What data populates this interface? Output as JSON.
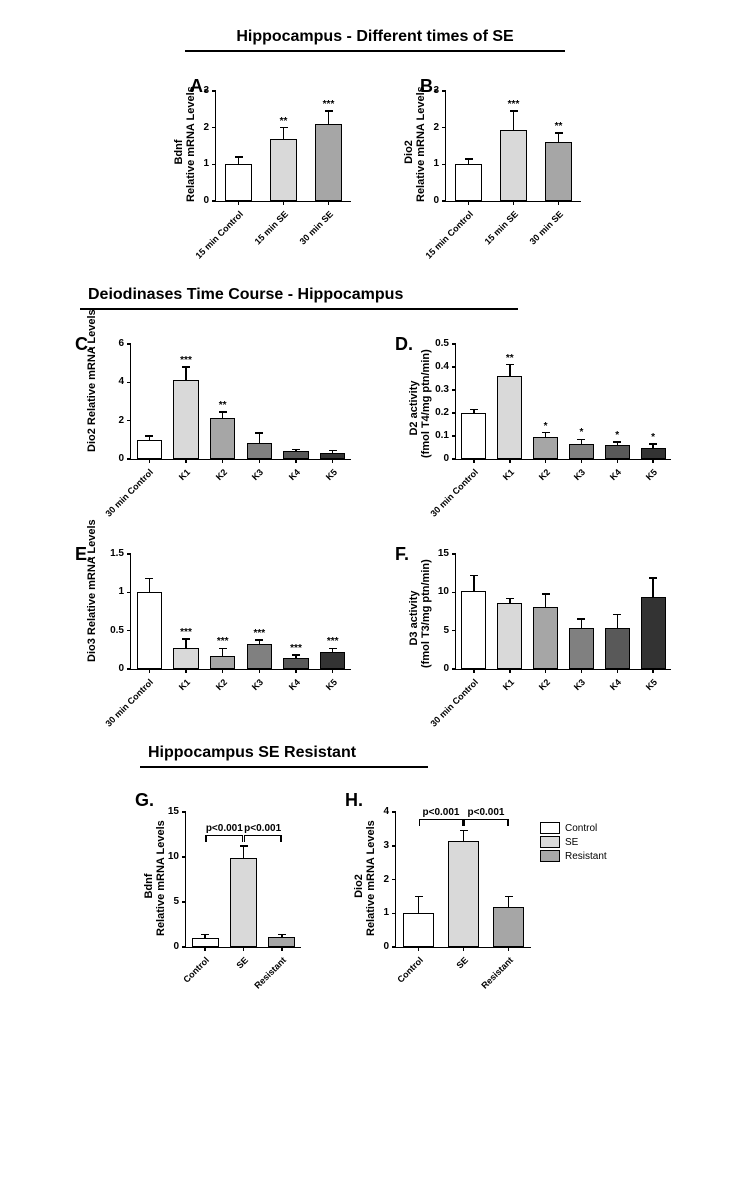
{
  "section1_title": "Hippocampus - Different times of SE",
  "section2_title": "Deiodinases Time Course - Hippocampus",
  "section3_title": "Hippocampus SE Resistant",
  "colors": {
    "white": "#ffffff",
    "light": "#d9d9d9",
    "mid1": "#a6a6a6",
    "mid2": "#808080",
    "dark1": "#595959",
    "dark2": "#333333"
  },
  "panelA": {
    "letter": "A.",
    "ylabel": "Bdnf\nRelative mRNA Levels",
    "ylim": [
      0,
      3
    ],
    "ytick_step": 1,
    "categories": [
      "15 min Control",
      "15 min SE",
      "30 min SE"
    ],
    "values": [
      1.0,
      1.7,
      2.1
    ],
    "errs": [
      0.2,
      0.3,
      0.35
    ],
    "bar_colors": [
      "#ffffff",
      "#d9d9d9",
      "#a6a6a6"
    ],
    "sigs": [
      "",
      "**",
      "***"
    ]
  },
  "panelB": {
    "letter": "B.",
    "ylabel": "Dio2\nRelative mRNA Levels",
    "ylim": [
      0,
      3
    ],
    "ytick_step": 1,
    "categories": [
      "15 min Control",
      "15 min SE",
      "30 min SE"
    ],
    "values": [
      1.0,
      1.95,
      1.6
    ],
    "errs": [
      0.15,
      0.5,
      0.25
    ],
    "bar_colors": [
      "#ffffff",
      "#d9d9d9",
      "#a6a6a6"
    ],
    "sigs": [
      "",
      "***",
      "**"
    ]
  },
  "panelC": {
    "letter": "C.",
    "ylabel": "Dio2 Relative mRNA Levels",
    "ylim": [
      0,
      6
    ],
    "ytick_step": 2,
    "categories": [
      "30 min Control",
      "K1",
      "K2",
      "K3",
      "K4",
      "K5"
    ],
    "values": [
      1.0,
      4.1,
      2.15,
      0.85,
      0.4,
      0.3
    ],
    "errs": [
      0.2,
      0.7,
      0.3,
      0.5,
      0.1,
      0.15
    ],
    "bar_colors": [
      "#ffffff",
      "#d9d9d9",
      "#a6a6a6",
      "#808080",
      "#595959",
      "#333333"
    ],
    "sigs": [
      "",
      "***",
      "**",
      "",
      "",
      ""
    ]
  },
  "panelD": {
    "letter": "D.",
    "ylabel": "D2 activity\n(fmol T4/mg ptn/min)",
    "ylim": [
      0,
      0.5
    ],
    "ytick_step": 0.1,
    "categories": [
      "30 min Control",
      "K1",
      "K2",
      "K3",
      "K4",
      "K5"
    ],
    "values": [
      0.2,
      0.36,
      0.095,
      0.065,
      0.06,
      0.05
    ],
    "errs": [
      0.015,
      0.05,
      0.02,
      0.02,
      0.015,
      0.015
    ],
    "bar_colors": [
      "#ffffff",
      "#d9d9d9",
      "#a6a6a6",
      "#808080",
      "#595959",
      "#333333"
    ],
    "sigs": [
      "",
      "**",
      "*",
      "*",
      "*",
      "*"
    ]
  },
  "panelE": {
    "letter": "E.",
    "ylabel": "Dio3 Relative mRNA Levels",
    "ylim": [
      0,
      1.5
    ],
    "ytick_step": 0.5,
    "categories": [
      "30 min Control",
      "K1",
      "K2",
      "K3",
      "K4",
      "K5"
    ],
    "values": [
      1.0,
      0.27,
      0.17,
      0.33,
      0.15,
      0.22
    ],
    "errs": [
      0.18,
      0.12,
      0.1,
      0.05,
      0.03,
      0.05
    ],
    "bar_colors": [
      "#ffffff",
      "#d9d9d9",
      "#a6a6a6",
      "#808080",
      "#595959",
      "#333333"
    ],
    "sigs": [
      "",
      "***",
      "***",
      "***",
      "***",
      "***"
    ]
  },
  "panelF": {
    "letter": "F.",
    "ylabel": "D3 activity\n(fmol T3/mg ptn/min)",
    "ylim": [
      0,
      15
    ],
    "ytick_step": 5,
    "categories": [
      "30 min Control",
      "K1",
      "K2",
      "K3",
      "K4",
      "K5"
    ],
    "values": [
      10.2,
      8.6,
      8.1,
      5.3,
      5.3,
      9.4
    ],
    "errs": [
      2.0,
      0.6,
      1.7,
      1.2,
      1.8,
      2.5
    ],
    "bar_colors": [
      "#ffffff",
      "#d9d9d9",
      "#a6a6a6",
      "#808080",
      "#595959",
      "#333333"
    ],
    "sigs": [
      "",
      "",
      "",
      "",
      "",
      ""
    ]
  },
  "panelG": {
    "letter": "G.",
    "ylabel": "Bdnf\nRelative mRNA Levels",
    "ylim": [
      0,
      15
    ],
    "ytick_step": 5,
    "categories": [
      "Control",
      "SE",
      "Resistant"
    ],
    "values": [
      1.0,
      9.9,
      1.1
    ],
    "errs": [
      0.4,
      1.3,
      0.3
    ],
    "bar_colors": [
      "#ffffff",
      "#d9d9d9",
      "#a6a6a6"
    ],
    "brackets": [
      {
        "from": 0,
        "to": 1,
        "y": 12.5,
        "label": "p<0.001"
      },
      {
        "from": 1,
        "to": 2,
        "y": 12.5,
        "label": "p<0.001"
      }
    ]
  },
  "panelH": {
    "letter": "H.",
    "ylabel": "Dio2\nRelative mRNA Levels",
    "ylim": [
      0,
      4
    ],
    "ytick_step": 1,
    "categories": [
      "Control",
      "SE",
      "Resistant"
    ],
    "values": [
      1.0,
      3.15,
      1.2
    ],
    "errs": [
      0.5,
      0.3,
      0.3
    ],
    "bar_colors": [
      "#ffffff",
      "#d9d9d9",
      "#a6a6a6"
    ],
    "brackets": [
      {
        "from": 0,
        "to": 1,
        "y": 3.8,
        "label": "p<0.001"
      },
      {
        "from": 1,
        "to": 2,
        "y": 3.8,
        "label": "p<0.001"
      }
    ],
    "legend": [
      {
        "label": "Control",
        "color": "#ffffff"
      },
      {
        "label": "SE",
        "color": "#d9d9d9"
      },
      {
        "label": "Resistant",
        "color": "#a6a6a6"
      }
    ]
  }
}
